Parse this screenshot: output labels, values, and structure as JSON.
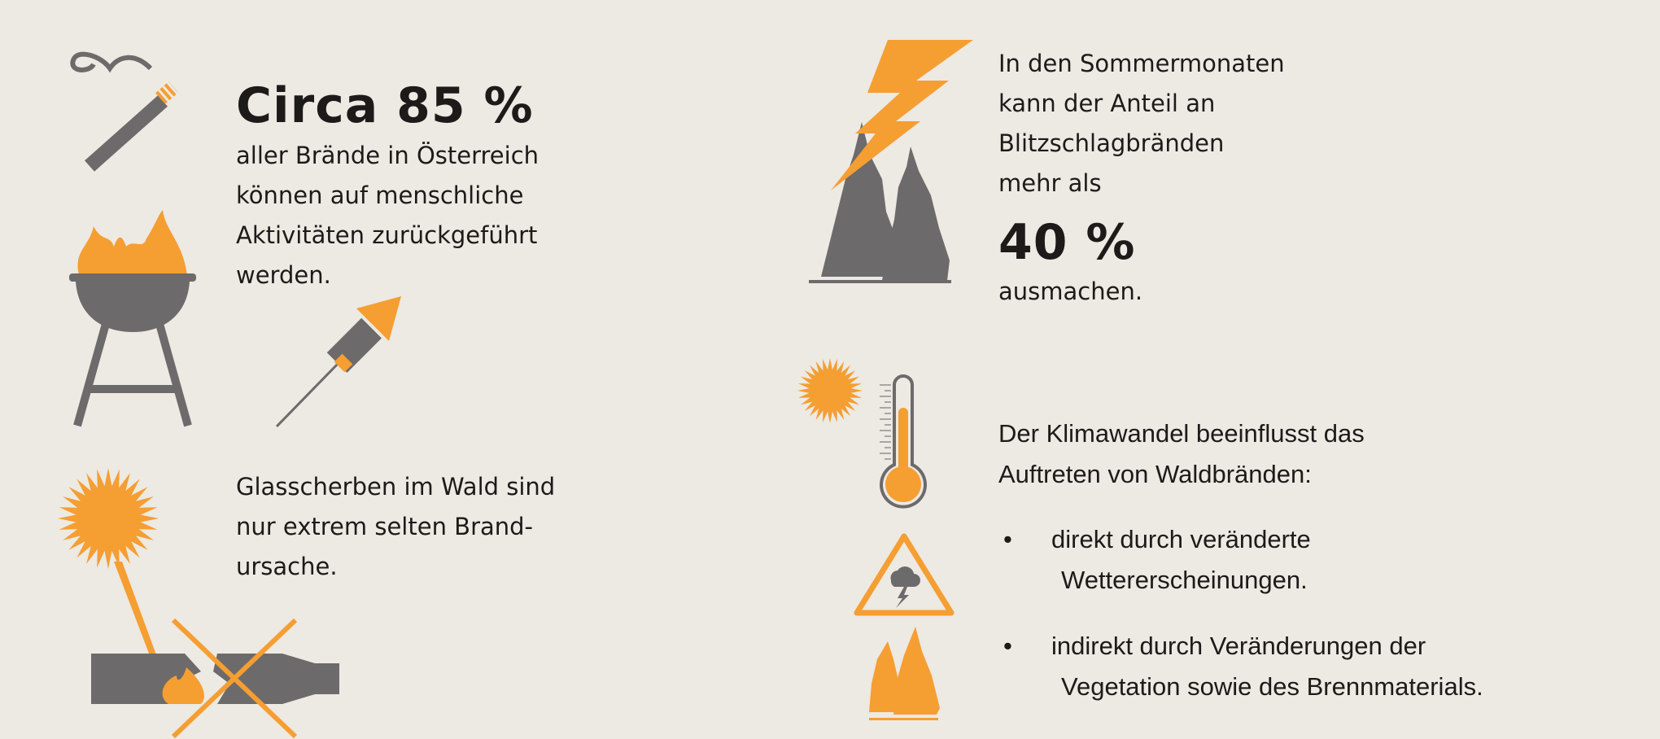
{
  "colors": {
    "background": "#ede9e3",
    "gray": "#6d6a6b",
    "orange": "#f59e32",
    "text": "#1d1a1a"
  },
  "left": {
    "human": {
      "headline": "Circa 85 %",
      "lines": [
        "aller Brände in Österreich",
        "können auf menschliche",
        "Aktivitäten zurückgeführt",
        "werden."
      ],
      "icons": [
        "cigarette-icon",
        "grill-icon",
        "rocket-icon"
      ]
    },
    "glass": {
      "lines": [
        "Glasscherben im Wald sind",
        "nur extrem selten Brand-",
        "ursache."
      ],
      "icons": [
        "sun-icon",
        "broken-bottle-icon",
        "cross-icon"
      ]
    }
  },
  "right": {
    "lightning": {
      "lines": [
        "In den Sommermonaten",
        "kann der Anteil an",
        "Blitzschlagbränden",
        "mehr als"
      ],
      "headline": "40 %",
      "after": "ausmachen.",
      "icons": [
        "lightning-icon",
        "trees-icon"
      ]
    },
    "climate": {
      "intro": [
        "Der Klimawandel beeinflusst das",
        "Auftreten von Waldbränden:"
      ],
      "bullets": [
        {
          "marker": "•",
          "line1": "direkt durch veränderte",
          "line2": "Wettererscheinungen."
        },
        {
          "marker": "•",
          "line1": "indirekt durch Veränderungen der",
          "line2": "Vegetation sowie des Brennmaterials."
        }
      ],
      "icons": [
        "sun-icon",
        "thermometer-icon",
        "storm-warning-icon",
        "trees-icon"
      ]
    }
  }
}
